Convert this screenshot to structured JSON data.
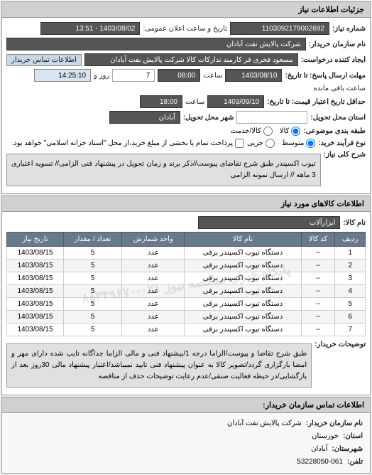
{
  "panels": {
    "details": "جزئیات اطلاعات نیاز",
    "goods": "اطلاعات کالاهای مورد نیاز",
    "buyer": "اطلاعات تماس سازمان خریدار:"
  },
  "labels": {
    "need_no": "شماره نیاز:",
    "public_date": "تاریخ و ساعت اعلان عمومی:",
    "buyer_name": "نام سازمان خریدار:",
    "requester": "ایجاد کننده درخواست:",
    "buyer_contact": "اطلاعات تماس خریدار",
    "deadline": "مهلت ارسال پاسخ: تا تاریخ:",
    "hour": "ساعت",
    "day": "روز و",
    "remain": "ساعت باقی مانده",
    "validity": "حداقل تاریخ اعتبار قیمت: تا تاریخ:",
    "delivery_place": "استان محل تحویل:",
    "delivery_city": "شهر محل تحویل:",
    "packing": "طبقه بندی موضوعی:",
    "process_type": "نوع فرآیند خرید:",
    "general_desc": "شرح کلی نیاز:",
    "goods_name_lbl": "نام کالا:",
    "explanations": "توضیحات خریدار:",
    "buyer_org": "نام سازمان خریدار:",
    "province": "استان:",
    "city": "شهرستان:",
    "phone": "تلفن:"
  },
  "values": {
    "need_no": "1103092179002692",
    "public_date": "1403/08/02 - 13:51",
    "buyer_name": "شرکت پالایش نفت آبادان",
    "requester": "مسعود فخری فر کارمند تدارکات کالا شرکت پالایش نفت آبادان",
    "deadline_date": "1403/08/10",
    "deadline_time": "08:00",
    "days_remain": "7",
    "time_remain": "14:25:10",
    "validity_date": "1403/09/10",
    "validity_time": "18:00",
    "delivery_city": "آبادان",
    "goods_filter": "ابزارآلات",
    "general_desc": "تیوب اکسپندر طبق شرح تقاضای پیوست//ذکر برند و زمان تحویل در پیشنهاد فنی الزامی// تسویه اعتباری 3 ماهه // ارسال نمونه الزامی",
    "explanations": "طبق شرح تقاضا و پیوست/الزاما درجه 1/پیشنهاد فنی و مالی الزاما جداگانه تایپ شده دارای مهر و امضا بارگزاری گردد/تصویر کالا به عنوان پیشنهاد فنی تایید نمیباشد/اعتبار پیشنهاد مالی 30روز بعد از بازگشایی/در حیطه فعالیت صنفی/عدم رعایت توضیحات حذف از مناقصه",
    "buyer_org": "شرکت پالایش نفت آبادان",
    "province": "خوزستان",
    "city": "آبادان",
    "phone": "53228050-061"
  },
  "radios": {
    "packing": [
      {
        "label": "کالا",
        "checked": true
      },
      {
        "label": "کالا/خدمت",
        "checked": false
      }
    ],
    "process": [
      {
        "label": "متوسط",
        "checked": true
      },
      {
        "label": "جزیی",
        "checked": false
      }
    ]
  },
  "checkbox": {
    "label": "پرداخت تمام یا بخشی از مبلغ خرید،از محل \"اسناد خزانه اسلامی\" خواهد بود.",
    "checked": false
  },
  "table": {
    "headers": [
      "ردیف",
      "کد کالا",
      "نام کالا",
      "واحد شمارش",
      "تعداد / مقدار",
      "تاریخ نیاز"
    ],
    "rows": [
      [
        "1",
        "--",
        "دستگاه تیوب اکسپندر برقی",
        "عدد",
        "5",
        "1403/08/15"
      ],
      [
        "2",
        "--",
        "دستگاه تیوب اکسپندر برقی",
        "عدد",
        "5",
        "1403/08/15"
      ],
      [
        "3",
        "--",
        "دستگاه تیوب اکسپندر برقی",
        "عدد",
        "5",
        "1403/08/15"
      ],
      [
        "4",
        "--",
        "دستگاه تیوب اکسپندر برقی",
        "عدد",
        "5",
        "1403/08/15"
      ],
      [
        "5",
        "--",
        "دستگاه تیوب اکسپندر برقی",
        "عدد",
        "5",
        "1403/08/15"
      ],
      [
        "6",
        "--",
        "دستگاه تیوب اکسپندر برقی",
        "عدد",
        "5",
        "1403/08/15"
      ],
      [
        "7",
        "--",
        "دستگاه تیوب اکسپندر برقی",
        "عدد",
        "5",
        "1403/08/15"
      ]
    ],
    "watermark": "پایگاه خبری مناقصه نیوز ۰۲۱-۸۸۳۴۹۶۷۰"
  }
}
